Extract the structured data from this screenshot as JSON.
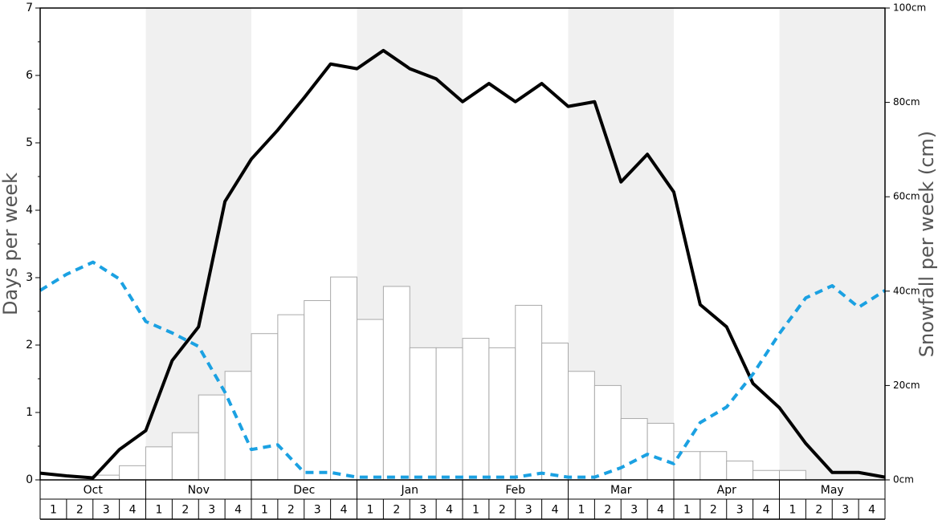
{
  "chart_data": {
    "type": "combo",
    "ylabel": "Days per week",
    "y2label": "Snowfall per week (cm)",
    "ylim": [
      0,
      7
    ],
    "yticks": [
      0,
      1,
      2,
      3,
      4,
      5,
      6,
      7
    ],
    "y2lim": [
      0,
      100
    ],
    "y2ticks": [
      {
        "value": 0,
        "label": "0cm"
      },
      {
        "value": 20,
        "label": "20cm"
      },
      {
        "value": 40,
        "label": "40cm"
      },
      {
        "value": 60,
        "label": "60cm"
      },
      {
        "value": 80,
        "label": "80cm"
      },
      {
        "value": 100,
        "label": "100cm"
      }
    ],
    "months": [
      "Oct",
      "Nov",
      "Dec",
      "Jan",
      "Feb",
      "Mar",
      "Apr",
      "May"
    ],
    "categories": [
      "1",
      "2",
      "3",
      "4",
      "1",
      "2",
      "3",
      "4",
      "1",
      "2",
      "3",
      "4",
      "1",
      "2",
      "3",
      "4",
      "1",
      "2",
      "3",
      "4",
      "1",
      "2",
      "3",
      "4",
      "1",
      "2",
      "3",
      "4",
      "1",
      "2",
      "3",
      "4"
    ],
    "shade": "#f0f0f0",
    "xlim": [
      0,
      32
    ],
    "x": [
      0,
      1,
      2,
      3,
      4,
      5,
      6,
      7,
      8,
      9,
      10,
      11,
      12,
      13,
      14,
      15,
      16,
      17,
      18,
      19,
      20,
      21,
      22,
      23,
      24,
      25,
      26,
      27,
      28,
      29,
      30,
      31,
      32
    ],
    "series": [
      {
        "type": "bar",
        "axis": "y2",
        "color": "#ffffff",
        "edge": "#aaaaaa",
        "values": [
          0,
          0,
          1,
          3,
          7,
          10,
          18,
          23,
          31,
          35,
          38,
          43,
          34,
          41,
          28,
          28,
          30,
          28,
          37,
          29,
          23,
          20,
          13,
          12,
          6,
          6,
          4,
          2,
          2,
          0,
          0,
          0
        ]
      },
      {
        "type": "line",
        "color": "#000000",
        "values": [
          0.1,
          0.06,
          0.03,
          0.45,
          0.73,
          1.77,
          2.27,
          4.13,
          4.76,
          5.19,
          5.67,
          6.17,
          6.1,
          6.37,
          6.1,
          5.95,
          5.61,
          5.88,
          5.61,
          5.88,
          5.54,
          5.61,
          4.42,
          4.83,
          4.27,
          2.6,
          2.27,
          1.43,
          1.07,
          0.54,
          0.11,
          0.11,
          0.04
        ]
      },
      {
        "type": "line",
        "color": "#1ba1e2",
        "dash": true,
        "values": [
          2.81,
          3.05,
          3.23,
          2.98,
          2.35,
          2.18,
          1.98,
          1.3,
          0.45,
          0.52,
          0.11,
          0.11,
          0.04,
          0.04,
          0.04,
          0.04,
          0.04,
          0.04,
          0.04,
          0.1,
          0.04,
          0.04,
          0.18,
          0.38,
          0.24,
          0.85,
          1.08,
          1.57,
          2.17,
          2.7,
          2.88,
          2.56,
          2.81
        ]
      }
    ]
  }
}
